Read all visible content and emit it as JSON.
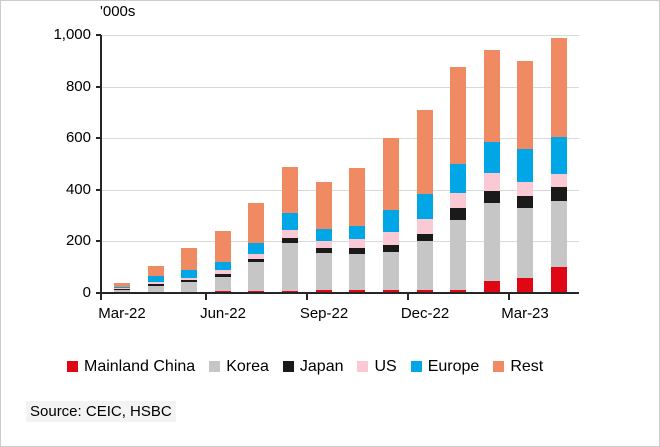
{
  "source_note": "Source: CEIC, HSBC",
  "colors": {
    "mainland_china": "#e00714",
    "korea": "#c6c6c6",
    "japan": "#1a1a1a",
    "us": "#fbc9d4",
    "europe": "#00a6e6",
    "rest": "#ef8a62",
    "gridline": "#d9d9d9",
    "axis": "#262626"
  },
  "chart_data": {
    "type": "bar",
    "stacked": true,
    "title": "'000s",
    "categories": [
      "Mar-22",
      "Apr-22",
      "May-22",
      "Jun-22",
      "Jul-22",
      "Aug-22",
      "Sep-22",
      "Oct-22",
      "Nov-22",
      "Dec-22",
      "Jan-23",
      "Feb-23",
      "Mar-23",
      "Apr-23"
    ],
    "x_tick_labels": [
      "Mar-22",
      "Jun-22",
      "Sep-22",
      "Dec-22",
      "Mar-23"
    ],
    "x_tick_every": 3,
    "series": [
      {
        "name": "Mainland China",
        "color": "#e00714",
        "values": [
          2,
          3,
          5,
          8,
          8,
          9,
          10,
          10,
          11,
          12,
          12,
          48,
          60,
          100
        ]
      },
      {
        "name": "Korea",
        "color": "#c6c6c6",
        "values": [
          8,
          25,
          38,
          55,
          112,
          185,
          144,
          140,
          148,
          190,
          271,
          300,
          268,
          258
        ]
      },
      {
        "name": "Japan",
        "color": "#1a1a1a",
        "values": [
          3,
          8,
          8,
          12,
          13,
          18,
          22,
          23,
          26,
          28,
          48,
          47,
          49,
          52
        ]
      },
      {
        "name": "US",
        "color": "#fbc9d4",
        "values": [
          3,
          8,
          9,
          13,
          18,
          31,
          26,
          35,
          50,
          56,
          58,
          69,
          54,
          53
        ]
      },
      {
        "name": "Europe",
        "color": "#00a6e6",
        "values": [
          9,
          20,
          28,
          32,
          42,
          68,
          45,
          52,
          86,
          99,
          110,
          120,
          129,
          140
        ]
      },
      {
        "name": "Rest",
        "color": "#ef8a62",
        "values": [
          15,
          41,
          87,
          120,
          157,
          177,
          185,
          226,
          279,
          325,
          376,
          356,
          340,
          387
        ]
      }
    ],
    "totals": [
      40,
      105,
      175,
      240,
      350,
      488,
      432,
      486,
      600,
      710,
      875,
      940,
      900,
      990
    ],
    "ylim": [
      0,
      1000
    ],
    "yticks": [
      0,
      200,
      400,
      600,
      800,
      1000
    ],
    "ytick_labels": [
      "0",
      "200",
      "400",
      "600",
      "800",
      "1,000"
    ],
    "grid": true,
    "legend_position": "bottom"
  }
}
